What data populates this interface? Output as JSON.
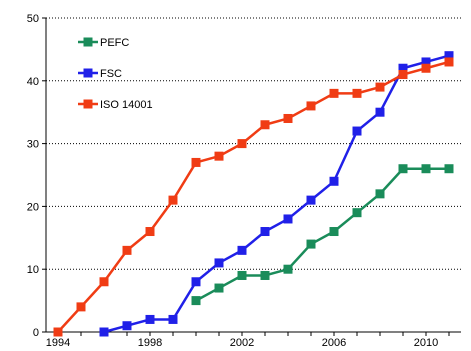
{
  "chart_data": {
    "type": "line",
    "title": "",
    "xlabel": "",
    "ylabel": "",
    "xlim": [
      1994,
      2011
    ],
    "ylim": [
      0,
      50
    ],
    "x_ticks": [
      "1994",
      "1998",
      "2002",
      "2006",
      "2010"
    ],
    "y_ticks": [
      "0",
      "10",
      "20",
      "30",
      "40",
      "50"
    ],
    "grid": "horizontal dotted",
    "legend_position": "top-left",
    "series": [
      {
        "name": "PEFC",
        "color": "#1a8c5a",
        "marker": "square",
        "x": [
          2000,
          2001,
          2002,
          2003,
          2004,
          2005,
          2006,
          2007,
          2008,
          2009,
          2010,
          2011
        ],
        "y": [
          5,
          7,
          9,
          9,
          10,
          14,
          16,
          19,
          22,
          26,
          26,
          26
        ]
      },
      {
        "name": "FSC",
        "color": "#2020e8",
        "marker": "square",
        "x": [
          1996,
          1997,
          1998,
          1999,
          2000,
          2001,
          2002,
          2003,
          2004,
          2005,
          2006,
          2007,
          2008,
          2009,
          2010,
          2011
        ],
        "y": [
          0,
          1,
          2,
          2,
          8,
          11,
          13,
          16,
          18,
          21,
          24,
          32,
          35,
          42,
          43,
          44
        ]
      },
      {
        "name": "ISO 14001",
        "color": "#f03c14",
        "marker": "square",
        "x": [
          1994,
          1995,
          1996,
          1997,
          1998,
          1999,
          2000,
          2001,
          2002,
          2003,
          2004,
          2005,
          2006,
          2007,
          2008,
          2009,
          2010,
          2011
        ],
        "y": [
          0,
          4,
          8,
          13,
          16,
          21,
          27,
          28,
          30,
          33,
          34,
          36,
          38,
          38,
          39,
          41,
          42,
          43
        ]
      }
    ]
  }
}
